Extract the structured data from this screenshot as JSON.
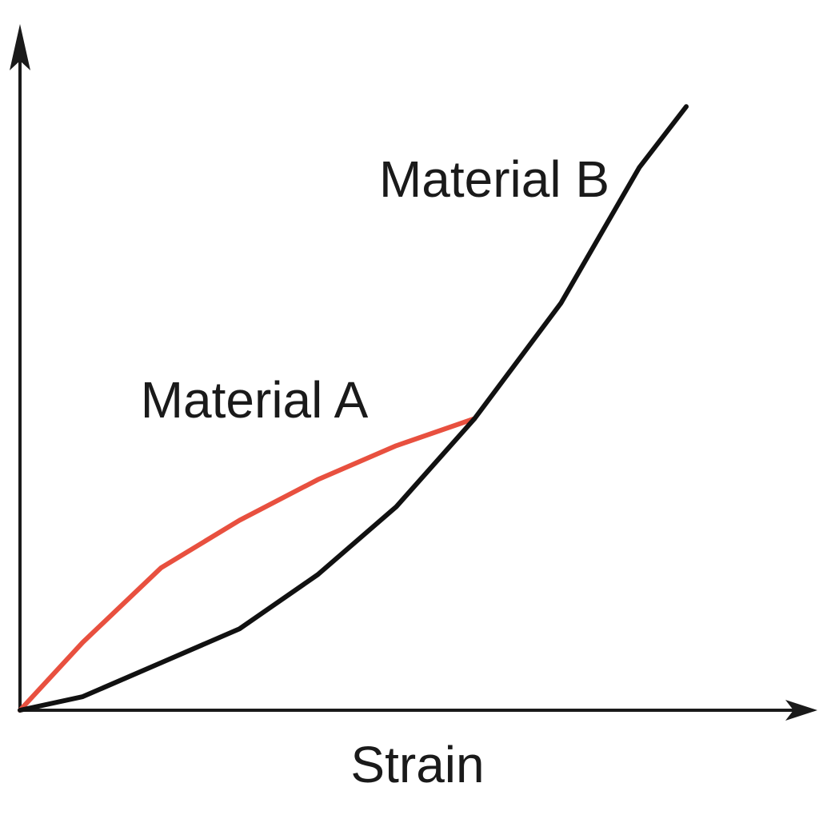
{
  "chart_data": {
    "type": "line",
    "x_label": "Strain",
    "x": [
      0,
      8,
      18,
      28,
      38,
      48,
      58,
      69,
      79,
      85
    ],
    "series": [
      {
        "name": "Material A",
        "color": "#e8503f",
        "values": [
          0,
          10,
          21,
          28,
          34,
          39,
          43,
          null,
          null,
          null
        ]
      },
      {
        "name": "Material B",
        "color": "#111111",
        "values": [
          0,
          2,
          7,
          12,
          20,
          30,
          43,
          60,
          80,
          89
        ]
      }
    ],
    "xlim": [
      0,
      100
    ],
    "ylim": [
      0,
      100
    ]
  }
}
